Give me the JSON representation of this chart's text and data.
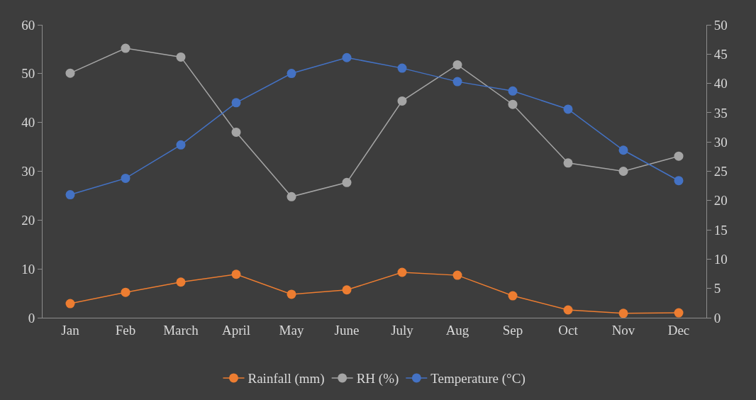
{
  "chart_data": {
    "type": "line",
    "categories": [
      "Jan",
      "Feb",
      "March",
      "April",
      "May",
      "June",
      "July",
      "Aug",
      "Sep",
      "Oct",
      "Nov",
      "Dec"
    ],
    "series": [
      {
        "name": "Rainfall (mm)",
        "color": "#ed7d31",
        "values": [
          2.9,
          5.2,
          7.3,
          8.9,
          4.8,
          5.7,
          9.3,
          8.7,
          4.5,
          1.6,
          0.9,
          1.0
        ]
      },
      {
        "name": "RH (%)",
        "color": "#a5a5a5",
        "values": [
          50.1,
          55.2,
          53.4,
          38.0,
          24.8,
          27.7,
          44.4,
          51.8,
          43.7,
          31.7,
          30.0,
          33.1
        ]
      },
      {
        "name": "Temperature (°C)",
        "color": "#4472c4",
        "axis": "y2",
        "values": [
          21.0,
          23.8,
          29.5,
          36.7,
          41.7,
          44.4,
          42.6,
          40.3,
          38.7,
          35.6,
          28.6,
          23.4
        ]
      }
    ],
    "ylim": [
      0,
      60
    ],
    "yticks": [
      0,
      10,
      20,
      30,
      40,
      50,
      60
    ],
    "y2lim": [
      0,
      50
    ],
    "y2ticks": [
      0,
      5,
      10,
      15,
      20,
      25,
      30,
      35,
      40,
      45,
      50
    ],
    "marker": "circle",
    "legend": "bottom",
    "grid": false
  }
}
